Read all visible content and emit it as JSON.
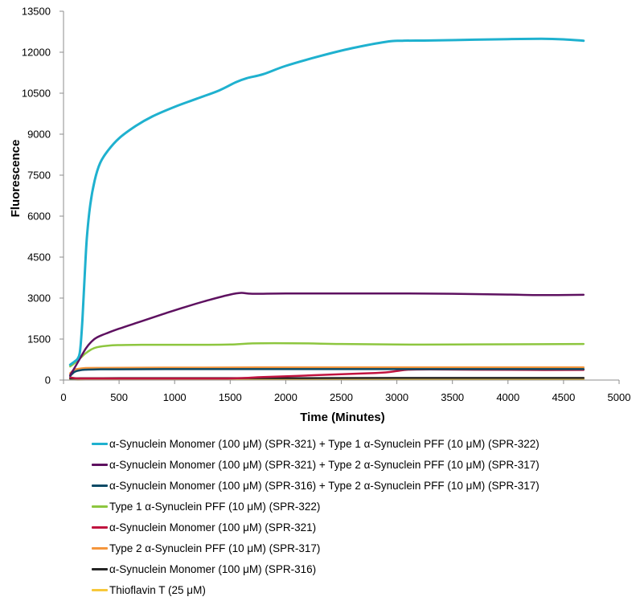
{
  "chart_data": {
    "type": "line",
    "title": "",
    "xlabel": "Time (Minutes)",
    "ylabel": "Fluorescence",
    "xlim": [
      0,
      5000
    ],
    "ylim": [
      0,
      13500
    ],
    "xticks": [
      "0",
      "500",
      "1000",
      "1500",
      "2000",
      "2500",
      "3000",
      "3500",
      "4000",
      "4500",
      "5000"
    ],
    "yticks": [
      "0",
      "1500",
      "3000",
      "4500",
      "6000",
      "7500",
      "9000",
      "10500",
      "12000",
      "13500"
    ],
    "grid": false,
    "legend_position": "bottom",
    "series": [
      {
        "name": "α-Synuclein Monomer (100 μM) (SPR-321) + Type 1 α-Synuclein PFF (10 μM) (SPR-322)",
        "color": "#1fb1cf",
        "x": [
          60,
          100,
          130,
          150,
          170,
          190,
          210,
          240,
          280,
          330,
          400,
          500,
          650,
          800,
          1000,
          1200,
          1400,
          1550,
          1650,
          1800,
          2000,
          2300,
          2600,
          2900,
          3050,
          3300,
          3700,
          4000,
          4300,
          4500,
          4680
        ],
        "y": [
          560,
          680,
          800,
          1100,
          2200,
          3800,
          5200,
          6400,
          7300,
          7950,
          8400,
          8850,
          9300,
          9650,
          10000,
          10300,
          10600,
          10900,
          11050,
          11200,
          11500,
          11850,
          12150,
          12380,
          12420,
          12430,
          12460,
          12480,
          12490,
          12470,
          12420
        ]
      },
      {
        "name": "α-Synuclein Monomer (100 μM) (SPR-321) + Type 2 α-Synuclein PFF (10 μM) (SPR-317)",
        "color": "#5e1160",
        "x": [
          60,
          100,
          150,
          200,
          250,
          300,
          400,
          500,
          700,
          900,
          1100,
          1300,
          1500,
          1600,
          1700,
          2000,
          2500,
          3000,
          3500,
          4000,
          4300,
          4680
        ],
        "y": [
          180,
          450,
          800,
          1150,
          1400,
          1560,
          1730,
          1880,
          2150,
          2420,
          2680,
          2920,
          3130,
          3190,
          3160,
          3170,
          3170,
          3170,
          3160,
          3130,
          3110,
          3120
        ]
      },
      {
        "name": "α-Synuclein Monomer (100 μM) (SPR-316) + Type 2 α-Synuclein PFF (10 μM) (SPR-317)",
        "color": "#0b4a66",
        "x": [
          60,
          100,
          150,
          200,
          300,
          500,
          1000,
          1500,
          2000,
          2500,
          3000,
          3500,
          4000,
          4680
        ],
        "y": [
          150,
          300,
          360,
          380,
          390,
          395,
          400,
          400,
          400,
          400,
          400,
          400,
          400,
          400
        ]
      },
      {
        "name": "Type 1 α-Synuclein PFF (10 μM) (SPR-322)",
        "color": "#8dc63f",
        "x": [
          60,
          100,
          150,
          200,
          250,
          300,
          400,
          500,
          700,
          1000,
          1300,
          1500,
          1700,
          1900,
          2200,
          2500,
          3000,
          3500,
          4000,
          4680
        ],
        "y": [
          500,
          620,
          800,
          980,
          1120,
          1200,
          1260,
          1280,
          1290,
          1290,
          1290,
          1300,
          1340,
          1350,
          1340,
          1320,
          1300,
          1300,
          1310,
          1320
        ]
      },
      {
        "name": "α-Synuclein Monomer (100 μM) (SPR-321)",
        "color": "#c0133f",
        "x": [
          60,
          100,
          150,
          200,
          500,
          1000,
          1400,
          1600,
          1800,
          2100,
          2400,
          2700,
          2900,
          3000,
          3100,
          3300,
          3700,
          4200,
          4680
        ],
        "y": [
          100,
          70,
          60,
          60,
          60,
          60,
          60,
          70,
          110,
          150,
          200,
          240,
          280,
          330,
          380,
          390,
          380,
          370,
          370
        ]
      },
      {
        "name": "Type 2 α-Synuclein PFF (10 μM) (SPR-317)",
        "color": "#f5963c",
        "x": [
          60,
          100,
          150,
          200,
          300,
          500,
          1000,
          1500,
          2000,
          2500,
          3000,
          3500,
          4000,
          4680
        ],
        "y": [
          250,
          380,
          420,
          440,
          445,
          450,
          455,
          460,
          465,
          465,
          465,
          465,
          465,
          465
        ]
      },
      {
        "name": "α-Synuclein Monomer (100 μM) (SPR-316)",
        "color": "#262626",
        "x": [
          60,
          100,
          150,
          200,
          500,
          1000,
          2000,
          3000,
          4000,
          4680
        ],
        "y": [
          60,
          60,
          65,
          65,
          70,
          70,
          70,
          75,
          75,
          75
        ]
      },
      {
        "name": "Thioflavin T (25 μM)",
        "color": "#f7c83a",
        "x": [
          60,
          100,
          200,
          500,
          1000,
          2000,
          3000,
          4000,
          4680
        ],
        "y": [
          25,
          20,
          20,
          20,
          20,
          20,
          20,
          20,
          20
        ]
      }
    ]
  }
}
